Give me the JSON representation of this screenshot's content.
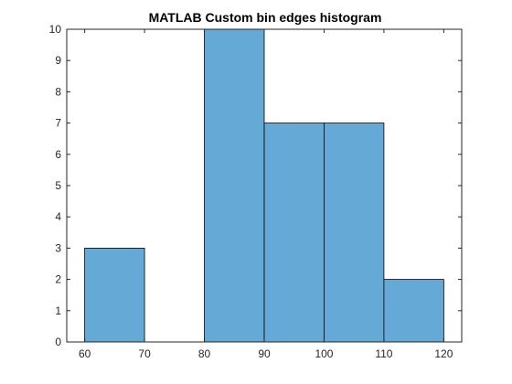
{
  "chart_data": {
    "type": "bar",
    "title": "MATLAB Custom bin edges histogram",
    "xlabel": "",
    "ylabel": "",
    "bin_edges": [
      60,
      70,
      80,
      90,
      100,
      110,
      120
    ],
    "counts": [
      3,
      0,
      10,
      7,
      7,
      2
    ],
    "xlim": [
      57,
      123
    ],
    "ylim": [
      0,
      10
    ],
    "x_ticks": [
      60,
      70,
      80,
      90,
      100,
      110,
      120
    ],
    "y_ticks": [
      0,
      1,
      2,
      3,
      4,
      5,
      6,
      7,
      8,
      9,
      10
    ],
    "grid": false,
    "bar_color": "#65A9D7",
    "edge_color": "#000000",
    "axis_color": "#262626"
  }
}
